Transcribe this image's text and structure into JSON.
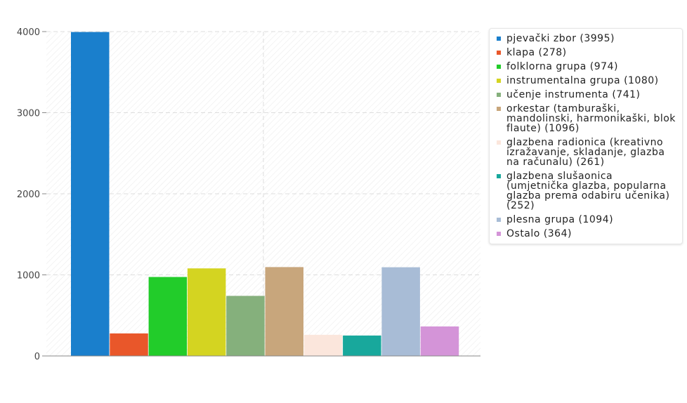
{
  "chart_data": {
    "type": "bar",
    "categories": [
      "pjevački zbor (3995)",
      "klapa (278)",
      "folklorna grupa (974)",
      "instrumentalna grupa (1080)",
      "učenje instrumenta (741)",
      "orkestar (tamburaški, mandolinski, harmonikaški, blok flaute) (1096)",
      "glazbena radionica (kreativno izražavanje, skladanje, glazba na računalu) (261)",
      "glazbena slušaonica (umjetnička glazba, popularna glazba prema odabiru učenika) (252)",
      "plesna grupa (1094)",
      "Ostalo (364)"
    ],
    "values": [
      3995,
      278,
      974,
      1080,
      741,
      1096,
      261,
      252,
      1094,
      364
    ],
    "colors": [
      "#1a7fcc",
      "#e9572a",
      "#22cc2a",
      "#d4d421",
      "#85b07c",
      "#c8a67c",
      "#fbe6dc",
      "#18a89c",
      "#a8bcd6",
      "#d494d8"
    ],
    "yticks": [
      0,
      1000,
      2000,
      3000,
      4000
    ],
    "ylim": [
      0,
      4000
    ],
    "title": "",
    "xlabel": "",
    "ylabel": "",
    "grid": true,
    "legend_position": "right"
  }
}
